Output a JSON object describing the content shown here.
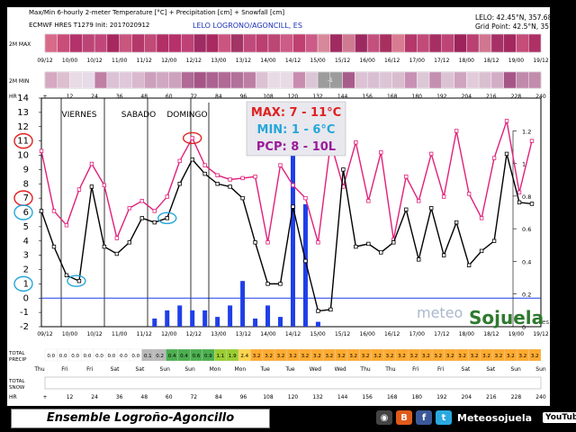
{
  "header": {
    "title": "Max/Min 6-hourly 2-meter Temperature [°C] + Precipitation [cm] + Snowfall [cm]",
    "model": "ECMWF HRES T1279 Init: 2017020912",
    "location": "LELO LOGRONO/AGONCILL, ES",
    "coords": "LELO: 42.45°N, 357.683°W",
    "grid": "Grid Point: 42.5°N, 357.7°W"
  },
  "rows": {
    "max_label": "2M MAX",
    "min_label": "2M MIN",
    "hr_label": "HR",
    "total_precip": [
      "TOTAL",
      "PRECIP"
    ],
    "total_snow": [
      "TOTAL",
      "SNOW"
    ],
    "days": [
      "Thu",
      "Fri",
      "Fri",
      "Sat",
      "Sat",
      "Sun",
      "Sun",
      "Mon",
      "Mon",
      "Tue",
      "Tue",
      "Wed",
      "Wed",
      "Thu",
      "Thu",
      "Fri",
      "Fri",
      "Sat",
      "Sat",
      "Sun",
      "Sun"
    ],
    "precip_values": [
      "0.0",
      "0.0",
      "0.0",
      "0.0",
      "0.0",
      "0.0",
      "0.0",
      "0.0",
      "0.1",
      "0.2",
      "0.4",
      "0.4",
      "0.6",
      "0.9",
      "1.1",
      "1.9",
      "2.4",
      "3.2",
      "3.2",
      "3.2",
      "3.2",
      "3.2",
      "3.2",
      "3.2",
      "3.2",
      "3.2",
      "3.2",
      "3.2",
      "3.2",
      "3.2",
      "3.2",
      "3.2",
      "3.2",
      "3.2",
      "3.2",
      "3.2",
      "3.2",
      "3.2",
      "3.2",
      "3.2",
      "3.2"
    ],
    "max_mid_value": "-1"
  },
  "annotations": {
    "days_bar": [
      "VIERNES",
      "SABADO",
      "DOMINGO"
    ],
    "max_text": "MAX: 7 - 11°C",
    "min_text": "MIN:  1 - 6°C",
    "pcp_text": "PCP: 8 - 10L",
    "circled_left": [
      "11",
      "7",
      "6",
      "1"
    ],
    "watermark_a": "meteo",
    "watermark_b": "Sojuela",
    "watermark_c": ".es"
  },
  "footer": {
    "title": "Ensemble Logroño-Agoncillo",
    "brand": "Meteosojuela",
    "youtube": "YouTube"
  },
  "chart_data": {
    "type": "line",
    "x_hours": [
      6,
      12,
      18,
      24,
      30,
      36,
      42,
      48,
      54,
      60,
      66,
      72,
      78,
      84,
      90,
      96,
      102,
      108,
      114,
      120,
      126,
      132,
      138,
      144,
      150,
      156,
      162,
      168,
      174,
      180,
      186,
      192,
      198,
      204,
      210,
      216,
      222,
      228,
      234,
      240
    ],
    "x_date_labels": [
      "09/12",
      "10/00",
      "10/12",
      "11/00",
      "11/12",
      "12/00",
      "12/12",
      "13/00",
      "13/12",
      "14/00",
      "14/12",
      "15/00",
      "15/12",
      "16/00",
      "16/12",
      "17/00",
      "17/12",
      "18/00",
      "18/12",
      "19/00",
      "19/12"
    ],
    "hr_ticks": [
      "+",
      "12",
      "24",
      "36",
      "48",
      "60",
      "72",
      "84",
      "96",
      "108",
      "120",
      "132",
      "144",
      "156",
      "168",
      "180",
      "192",
      "204",
      "216",
      "228",
      "240"
    ],
    "series": [
      {
        "name": "2M MAX",
        "color": "#e0207a",
        "values": [
          10.3,
          6.1,
          5.1,
          7.6,
          9.4,
          7.9,
          4.2,
          6.3,
          6.8,
          6.1,
          7.1,
          9.6,
          11.2,
          9.3,
          8.6,
          8.3,
          8.4,
          8.5,
          3.9,
          9.3,
          7.9,
          7.0,
          3.9,
          10.9,
          7.8,
          10.9,
          6.8,
          10.2,
          4.1,
          8.5,
          6.8,
          10.1,
          7.1,
          11.7,
          7.3,
          5.6,
          9.8,
          12.4,
          7.4,
          11.0
        ]
      },
      {
        "name": "2M MIN",
        "color": "#000000",
        "values": [
          6.1,
          3.6,
          1.6,
          1.2,
          7.8,
          3.6,
          3.1,
          3.9,
          5.6,
          5.3,
          5.6,
          8.0,
          9.7,
          8.7,
          8.0,
          7.8,
          7.0,
          3.9,
          1.0,
          1.0,
          6.4,
          2.6,
          -0.9,
          -0.8,
          9.0,
          3.6,
          3.8,
          3.2,
          3.9,
          6.2,
          2.7,
          6.3,
          3.0,
          5.3,
          2.3,
          3.3,
          4.0,
          10.1,
          6.7,
          6.6
        ]
      },
      {
        "name": "Precipitation",
        "color": "#1f3fe8",
        "type": "bar",
        "values": [
          0,
          0,
          0,
          0,
          0,
          0,
          0,
          0,
          0,
          0.05,
          0.1,
          0.13,
          0.1,
          0.1,
          0.06,
          0.13,
          0.28,
          0.05,
          0.13,
          0.06,
          1.25,
          0.75,
          0.03,
          0,
          0,
          0,
          0,
          0,
          0,
          0,
          0,
          0,
          0,
          0,
          0,
          0,
          0,
          0,
          0,
          0
        ]
      }
    ],
    "y_left": {
      "min": -2,
      "max": 14,
      "ticks": [
        -2,
        -1,
        0,
        1,
        2,
        3,
        4,
        5,
        6,
        7,
        8,
        9,
        10,
        11,
        12,
        13,
        14
      ]
    },
    "y_right": {
      "min": 0,
      "max": 1.4,
      "ticks": [
        0,
        0.2,
        0.4,
        0.6,
        0.8,
        1,
        1.2
      ]
    },
    "reference_line": 0
  }
}
